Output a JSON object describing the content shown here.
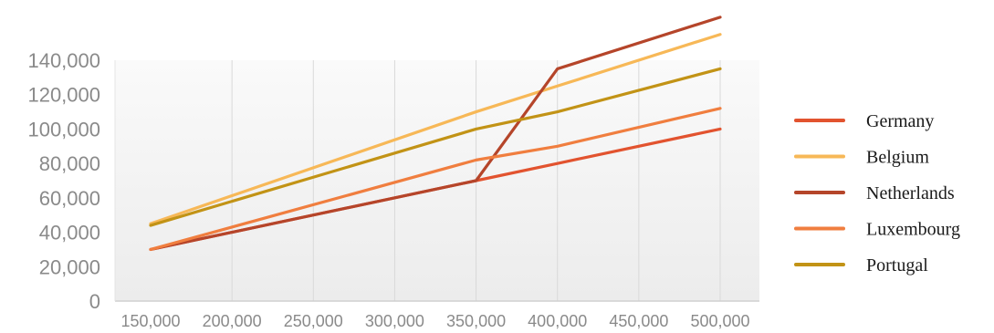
{
  "chart_data": {
    "type": "line",
    "title": "",
    "xlabel": "",
    "ylabel": "",
    "x": [
      150000,
      350000,
      400000,
      500000
    ],
    "xlim": [
      150000,
      500000
    ],
    "ylim": [
      0,
      140000
    ],
    "x_ticks": [
      150000,
      200000,
      250000,
      300000,
      350000,
      400000,
      450000,
      500000
    ],
    "y_ticks": [
      0,
      20000,
      40000,
      60000,
      80000,
      100000,
      120000,
      140000
    ],
    "x_tick_labels": [
      "150,000",
      "200,000",
      "250,000",
      "300,000",
      "350,000",
      "400,000",
      "450,000",
      "500,000"
    ],
    "y_tick_labels": [
      "0",
      "20,000",
      "40,000",
      "60,000",
      "80,000",
      "100,000",
      "120,000",
      "140,000"
    ],
    "grid": "vertical",
    "legend_position": "right",
    "series": [
      {
        "name": "Germany",
        "color": "#e2532f",
        "values": [
          30000,
          70000,
          80000,
          100000
        ]
      },
      {
        "name": "Belgium",
        "color": "#f7b857",
        "values": [
          45000,
          110000,
          125000,
          155000
        ]
      },
      {
        "name": "Netherlands",
        "color": "#b5452a",
        "values": [
          30000,
          70000,
          135000,
          165000
        ]
      },
      {
        "name": "Luxembourg",
        "color": "#f07e3f",
        "values": [
          30000,
          82000,
          90000,
          112000
        ]
      },
      {
        "name": "Portugal",
        "color": "#c29316",
        "values": [
          44000,
          100000,
          110000,
          135000
        ]
      }
    ]
  }
}
